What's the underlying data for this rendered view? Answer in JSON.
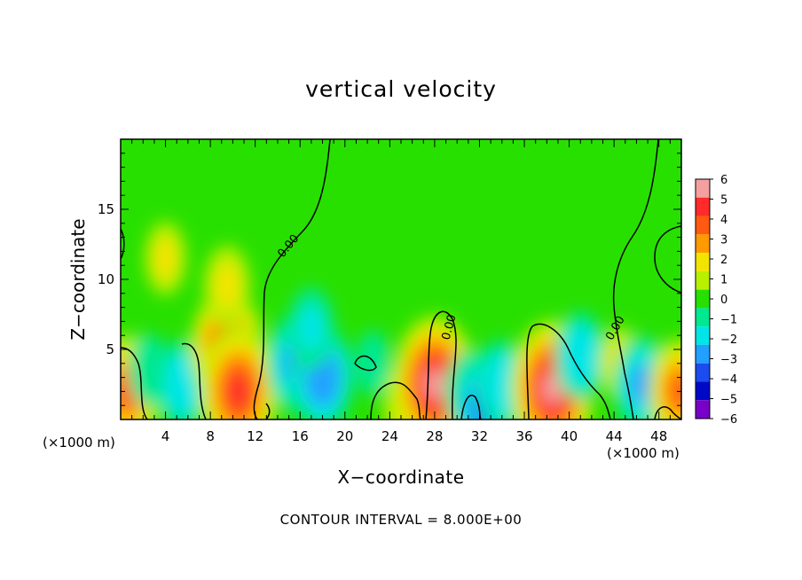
{
  "chart_data": {
    "type": "heatmap",
    "title": "vertical velocity",
    "xlabel": "X−coordinate",
    "ylabel": "Z−coordinate",
    "x_unit_left": "(×1000 m)",
    "x_unit_right": "(×1000 m)",
    "xlim": [
      0,
      50
    ],
    "ylim": [
      0,
      20
    ],
    "xticks": [
      4,
      8,
      12,
      16,
      20,
      24,
      28,
      32,
      36,
      40,
      44,
      48
    ],
    "yticks": [
      5,
      10,
      15
    ],
    "colorbar": {
      "levels": [
        6,
        5,
        4,
        3,
        2,
        1,
        0,
        -1,
        -2,
        -3,
        -4,
        -5,
        -6
      ],
      "labels": [
        "6",
        "5",
        "4",
        "3",
        "2",
        "1",
        "0",
        "−1",
        "−2",
        "−3",
        "−4",
        "−5",
        "−6"
      ],
      "colors": [
        "#f4a0a0",
        "#ff2a2a",
        "#ff5a10",
        "#ff9a00",
        "#f3e400",
        "#b8f000",
        "#28e000",
        "#00e890",
        "#00e6e6",
        "#22a0ff",
        "#1a4cf0",
        "#0008c8",
        "#7800c8"
      ]
    },
    "contour_label": "0.00",
    "contour_interval_text": "CONTOUR INTERVAL =  8.000E+00",
    "features": [
      {
        "x": 0.5,
        "z": 2.0,
        "w": 4.0
      },
      {
        "x": 2.5,
        "z": 3.5,
        "w": -1.5
      },
      {
        "x": 5.5,
        "z": 2.5,
        "w": -2.5
      },
      {
        "x": 9.5,
        "z": 5.0,
        "w": 4.5
      },
      {
        "x": 10.5,
        "z": 2.0,
        "w": 5.0
      },
      {
        "x": 9.5,
        "z": 9.5,
        "w": 2.0
      },
      {
        "x": 4.0,
        "z": 11.5,
        "w": 1.5
      },
      {
        "x": 15.5,
        "z": 4.0,
        "w": -3.0
      },
      {
        "x": 18.0,
        "z": 3.0,
        "w": -3.5
      },
      {
        "x": 17.0,
        "z": 6.5,
        "w": -2.0
      },
      {
        "x": 22.5,
        "z": 4.0,
        "w": -1.0
      },
      {
        "x": 26.0,
        "z": 1.0,
        "w": 3.0
      },
      {
        "x": 28.0,
        "z": 2.5,
        "w": 5.5
      },
      {
        "x": 31.0,
        "z": 2.0,
        "w": -2.0
      },
      {
        "x": 32.5,
        "z": 1.0,
        "w": -4.0
      },
      {
        "x": 34.0,
        "z": 2.5,
        "w": -2.5
      },
      {
        "x": 38.5,
        "z": 2.2,
        "w": 5.5
      },
      {
        "x": 41.0,
        "z": 4.5,
        "w": -2.5
      },
      {
        "x": 44.5,
        "z": 4.0,
        "w": 1.5
      },
      {
        "x": 46.5,
        "z": 2.5,
        "w": -3.0
      },
      {
        "x": 49.8,
        "z": 2.0,
        "w": 3.5
      }
    ]
  }
}
